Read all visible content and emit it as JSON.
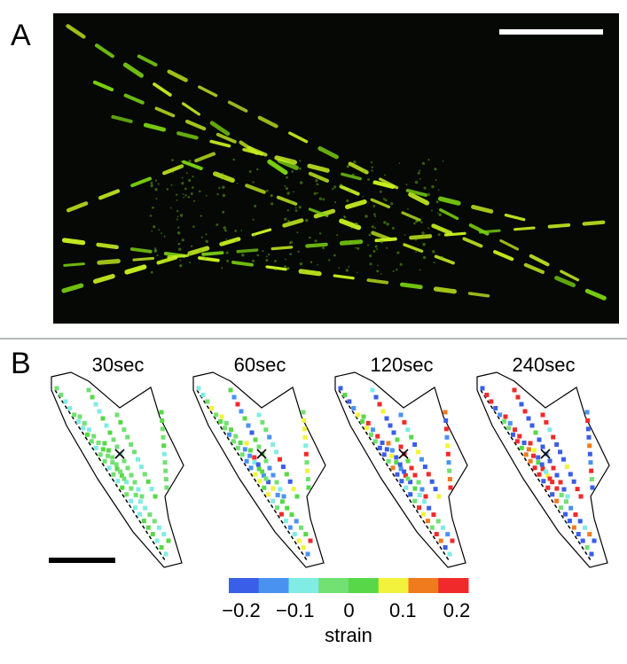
{
  "panel_a": {
    "label": "A"
  },
  "panel_b": {
    "label": "B",
    "timepoints": [
      "30sec",
      "60sec",
      "120sec",
      "240sec"
    ],
    "colorbar": {
      "colors": [
        "#3a5ee8",
        "#4a92f0",
        "#80ece4",
        "#72e072",
        "#58d848",
        "#f2f23c",
        "#f07a1e",
        "#f02a2a"
      ],
      "tick_labels": [
        "−0.2",
        "−0.1",
        "0",
        "0.1",
        "0.2"
      ],
      "label": "strain"
    }
  }
}
